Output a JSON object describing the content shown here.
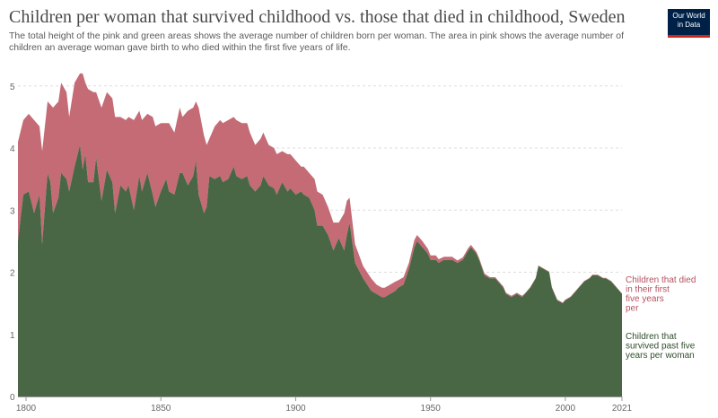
{
  "header": {
    "title": "Children per woman that survived childhood vs. those that died in childhood, Sweden",
    "subtitle": "The total height of the pink and green areas shows the average number of children born per woman. The area in pink shows the average number of children an average woman gave birth to who died within the first five years of life."
  },
  "logo": {
    "line1": "Our World",
    "line2": "in Data",
    "bg_color": "#002147",
    "accent_color": "#ce261e"
  },
  "chart_data": {
    "type": "area",
    "stacked": true,
    "title": "Children per woman that survived childhood vs. those that died in childhood, Sweden",
    "x_ticks": [
      1800,
      1850,
      1900,
      1950,
      2000,
      2021
    ],
    "y_ticks": [
      0,
      1,
      2,
      3,
      4,
      5
    ],
    "xlim": [
      1797,
      2021
    ],
    "ylim": [
      0,
      5.3
    ],
    "grid": "horizontal dashed",
    "legend": "right, inline labels",
    "x": [
      1797,
      1799,
      1801,
      1803,
      1805,
      1806,
      1808,
      1809,
      1810,
      1812,
      1813,
      1815,
      1816,
      1818,
      1820,
      1821,
      1822,
      1823,
      1825,
      1826,
      1828,
      1830,
      1832,
      1833,
      1835,
      1837,
      1838,
      1840,
      1842,
      1843,
      1845,
      1847,
      1848,
      1850,
      1852,
      1853,
      1855,
      1857,
      1858,
      1860,
      1862,
      1863,
      1864,
      1866,
      1867,
      1868,
      1870,
      1872,
      1873,
      1875,
      1877,
      1878,
      1880,
      1882,
      1883,
      1885,
      1887,
      1888,
      1890,
      1892,
      1893,
      1895,
      1897,
      1898,
      1900,
      1902,
      1903,
      1905,
      1907,
      1908,
      1910,
      1912,
      1914,
      1916,
      1918,
      1919,
      1920,
      1922,
      1925,
      1928,
      1930,
      1932,
      1933,
      1935,
      1937,
      1938,
      1940,
      1942,
      1944,
      1945,
      1947,
      1949,
      1950,
      1952,
      1953,
      1955,
      1957,
      1958,
      1960,
      1962,
      1964,
      1965,
      1967,
      1968,
      1970,
      1972,
      1974,
      1975,
      1977,
      1978,
      1980,
      1982,
      1984,
      1985,
      1987,
      1989,
      1990,
      1992,
      1994,
      1995,
      1997,
      1999,
      2000,
      2002,
      2004,
      2005,
      2007,
      2009,
      2010,
      2012,
      2014,
      2015,
      2017,
      2019,
      2021
    ],
    "series": [
      {
        "name": "Children that survived past five years per woman",
        "color": "#496744",
        "values": [
          2.5,
          3.25,
          3.3,
          2.95,
          3.25,
          2.45,
          3.6,
          3.45,
          2.95,
          3.2,
          3.6,
          3.5,
          3.3,
          3.7,
          4.05,
          3.65,
          3.9,
          3.45,
          3.45,
          3.85,
          3.15,
          3.65,
          3.45,
          2.95,
          3.4,
          3.3,
          3.4,
          3.0,
          3.55,
          3.3,
          3.6,
          3.25,
          3.05,
          3.3,
          3.5,
          3.3,
          3.25,
          3.6,
          3.6,
          3.4,
          3.55,
          3.8,
          3.25,
          2.95,
          3.05,
          3.55,
          3.5,
          3.55,
          3.45,
          3.5,
          3.7,
          3.55,
          3.5,
          3.55,
          3.4,
          3.3,
          3.4,
          3.55,
          3.4,
          3.35,
          3.25,
          3.45,
          3.3,
          3.35,
          3.25,
          3.3,
          3.25,
          3.2,
          3.0,
          2.75,
          2.75,
          2.6,
          2.35,
          2.55,
          2.35,
          2.6,
          2.8,
          2.15,
          1.9,
          1.7,
          1.65,
          1.6,
          1.6,
          1.65,
          1.7,
          1.75,
          1.8,
          2.05,
          2.4,
          2.5,
          2.4,
          2.3,
          2.2,
          2.2,
          2.15,
          2.2,
          2.2,
          2.2,
          2.15,
          2.2,
          2.35,
          2.4,
          2.3,
          2.2,
          1.95,
          1.9,
          1.9,
          1.85,
          1.75,
          1.65,
          1.6,
          1.65,
          1.6,
          1.65,
          1.75,
          1.9,
          2.1,
          2.05,
          2.0,
          1.75,
          1.55,
          1.5,
          1.55,
          1.6,
          1.7,
          1.75,
          1.85,
          1.9,
          1.95,
          1.95,
          1.9,
          1.9,
          1.85,
          1.75,
          1.65
        ]
      },
      {
        "name": "Children that died in their first five years per woman",
        "color": "#c46b76",
        "values": [
          1.6,
          1.2,
          1.25,
          1.5,
          1.1,
          1.5,
          1.15,
          1.25,
          1.7,
          1.55,
          1.45,
          1.4,
          1.2,
          1.35,
          1.15,
          1.55,
          1.15,
          1.5,
          1.45,
          1.05,
          1.5,
          1.25,
          1.35,
          1.55,
          1.1,
          1.15,
          1.1,
          1.45,
          1.05,
          1.15,
          0.95,
          1.25,
          1.3,
          1.1,
          0.9,
          1.1,
          1.0,
          1.05,
          0.9,
          1.2,
          1.1,
          0.95,
          1.4,
          1.25,
          1.0,
          0.6,
          0.85,
          0.9,
          0.95,
          0.95,
          0.8,
          0.9,
          0.9,
          0.85,
          0.85,
          0.75,
          0.75,
          0.7,
          0.65,
          0.65,
          0.65,
          0.5,
          0.6,
          0.55,
          0.55,
          0.4,
          0.45,
          0.4,
          0.5,
          0.55,
          0.5,
          0.45,
          0.45,
          0.25,
          0.6,
          0.55,
          0.4,
          0.3,
          0.2,
          0.2,
          0.15,
          0.15,
          0.15,
          0.15,
          0.15,
          0.12,
          0.12,
          0.1,
          0.12,
          0.1,
          0.1,
          0.08,
          0.07,
          0.07,
          0.06,
          0.05,
          0.05,
          0.05,
          0.04,
          0.04,
          0.04,
          0.04,
          0.03,
          0.03,
          0.03,
          0.02,
          0.02,
          0.02,
          0.02,
          0.02,
          0.02,
          0.02,
          0.02,
          0.01,
          0.01,
          0.01,
          0.01,
          0.01,
          0.01,
          0.01,
          0.01,
          0.01,
          0.01,
          0.01,
          0.01,
          0.01,
          0.01,
          0.01,
          0.01,
          0.01,
          0.01,
          0.01,
          0.01,
          0.01,
          0.01
        ]
      }
    ]
  },
  "labels": {
    "died": "Children that died in their first five years per woman",
    "survived": "Children that survived past five years per woman"
  }
}
